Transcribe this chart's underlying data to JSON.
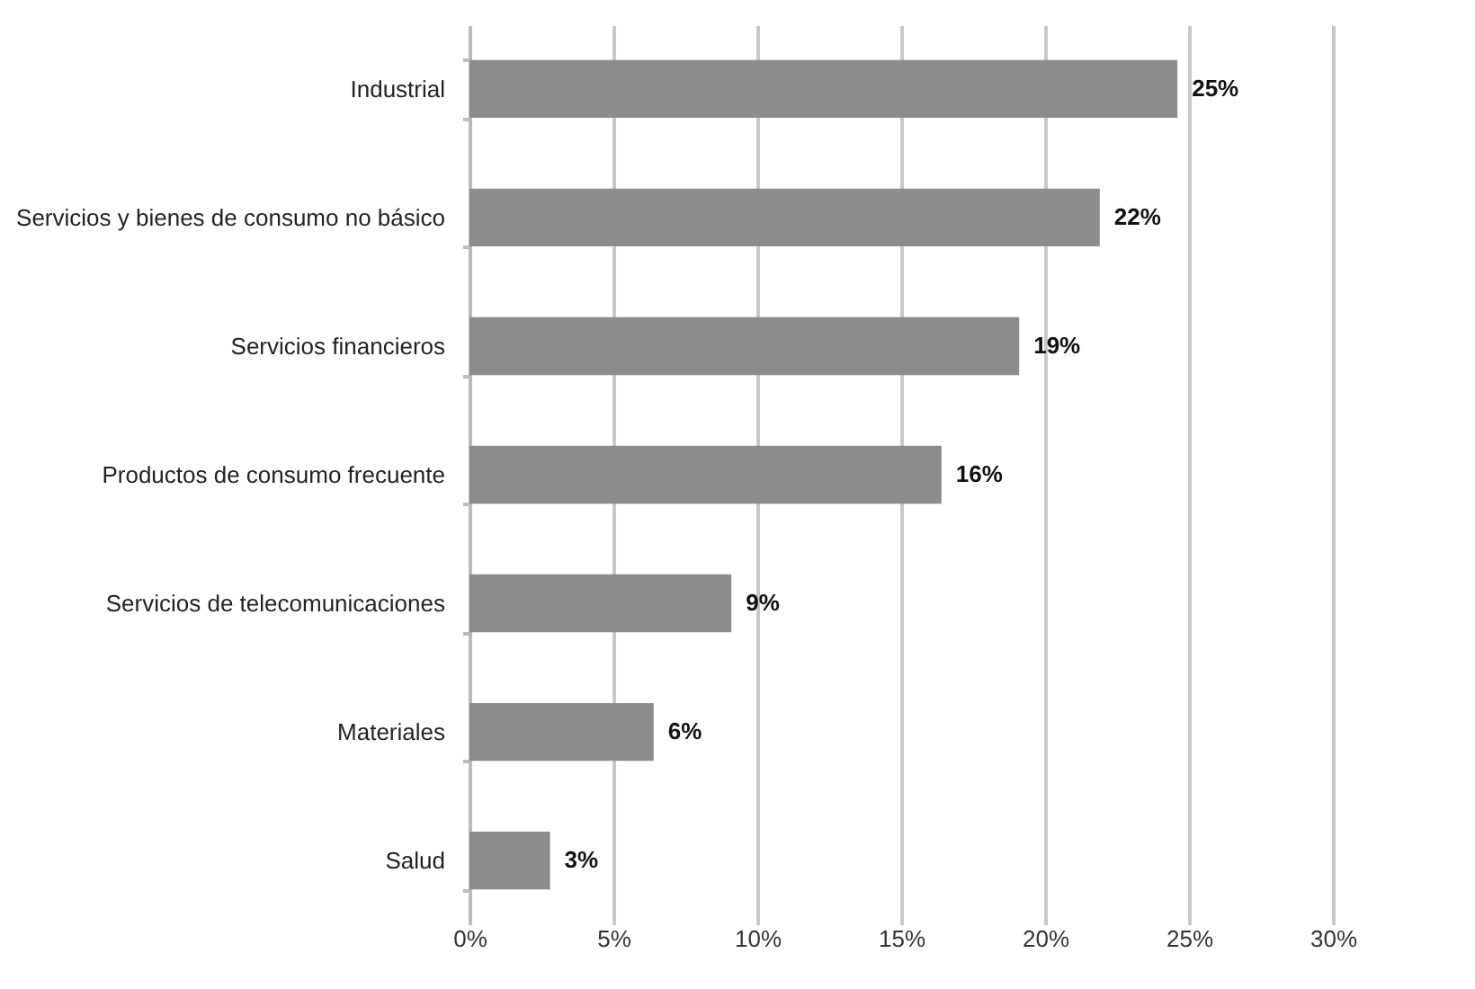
{
  "chart_data": {
    "type": "bar",
    "orientation": "horizontal",
    "categories": [
      "Industrial",
      "Servicios y bienes de consumo no básico",
      "Servicios financieros",
      "Productos de consumo frecuente",
      "Servicios de telecomunicaciones",
      "Materiales",
      "Salud"
    ],
    "values": [
      24.6,
      21.9,
      19.1,
      16.4,
      9.1,
      6.4,
      2.8
    ],
    "value_labels": [
      "25%",
      "22%",
      "19%",
      "16%",
      "9%",
      "6%",
      "3%"
    ],
    "color": "#8c8c8c",
    "xlim": [
      0,
      30
    ],
    "xticks": [
      {
        "value": 0,
        "label": "0%"
      },
      {
        "value": 5,
        "label": "5%"
      },
      {
        "value": 10,
        "label": "10%"
      },
      {
        "value": 15,
        "label": "15%"
      },
      {
        "value": 20,
        "label": "20%"
      },
      {
        "value": 25,
        "label": "25%"
      },
      {
        "value": 30,
        "label": "30%"
      }
    ],
    "grid": "x"
  }
}
